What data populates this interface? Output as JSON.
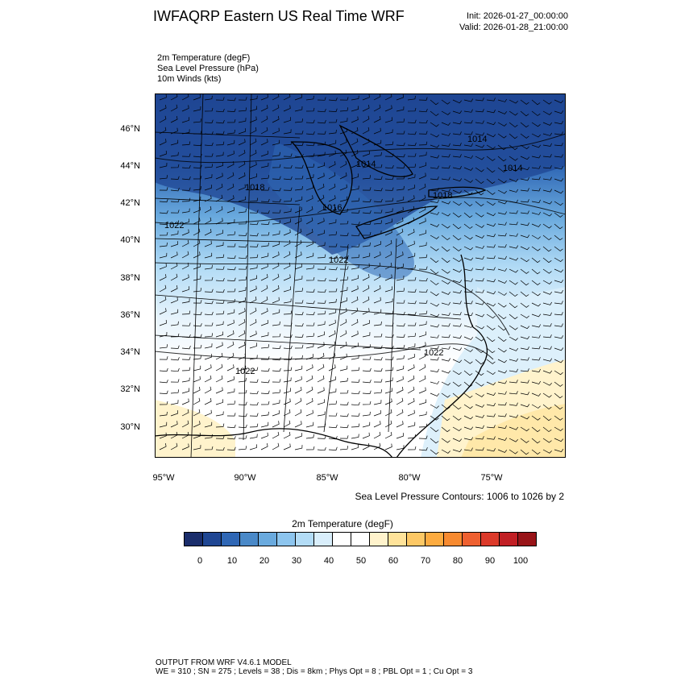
{
  "header": {
    "title": "IWFAQRP Eastern US Real Time WRF",
    "init": "Init: 2026-01-27_00:00:00",
    "valid": "Valid: 2026-01-28_21:00:00"
  },
  "fields": [
    "2m Temperature   (degF)",
    "Sea Level Pressure   (hPa)",
    "10m Winds   (kts)"
  ],
  "axes": {
    "lat_labels": [
      "46°N",
      "44°N",
      "42°N",
      "40°N",
      "38°N",
      "36°N",
      "34°N",
      "32°N",
      "30°N"
    ],
    "lon_labels": [
      "95°W",
      "90°W",
      "85°W",
      "80°W",
      "75°W"
    ]
  },
  "contour_labels": [
    "1014",
    "1014",
    "1014",
    "1016",
    "1018",
    "1018",
    "1022",
    "1022",
    "1022",
    "1022",
    "1026"
  ],
  "contour_note": "Sea Level Pressure Contours: 1006 to 1026 by 2",
  "colorbar": {
    "title": "2m Temperature  (degF)",
    "colors": [
      "#1a2d6b",
      "#1f4693",
      "#2f67b5",
      "#4a89c8",
      "#6aaade",
      "#8dc5ee",
      "#b3dcf6",
      "#d9eefb",
      "#ffffff",
      "#ffffff",
      "#fff3cc",
      "#ffe39a",
      "#fdc865",
      "#fcab40",
      "#f78a30",
      "#ee6030",
      "#dc3a2a",
      "#c11f24",
      "#981418"
    ],
    "tick_labels": [
      "0",
      "10",
      "20",
      "30",
      "40",
      "50",
      "60",
      "70",
      "80",
      "90",
      "100"
    ]
  },
  "footer": {
    "line1": "OUTPUT FROM WRF V4.6.1 MODEL",
    "line2": "WE = 310 ; SN = 275 ; Levels = 38 ; Dis = 8km ; Phys Opt = 8 ; PBL Opt = 1 ; Cu Opt = 3"
  }
}
